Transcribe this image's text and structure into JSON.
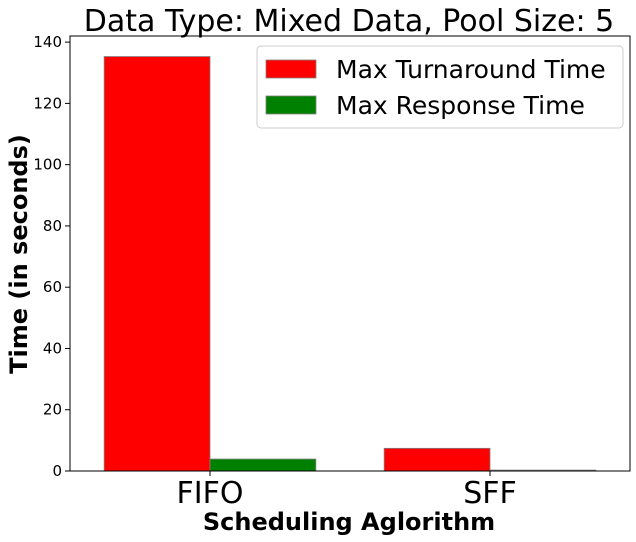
{
  "chart_data": {
    "type": "bar",
    "title": "Data Type: Mixed Data, Pool Size: 5",
    "xlabel": "Scheduling Aglorithm",
    "ylabel": "Time (in seconds)",
    "categories": [
      "FIFO",
      "SFF"
    ],
    "series": [
      {
        "name": "Max Turnaround Time",
        "color": "#ff0000",
        "values": [
          135.3,
          7.4
        ]
      },
      {
        "name": "Max Response Time",
        "color": "#008000",
        "values": [
          3.9,
          0.3
        ]
      }
    ],
    "ylim": [
      0,
      142
    ],
    "yticks": [
      0,
      20,
      40,
      60,
      80,
      100,
      120,
      140
    ],
    "grid": false,
    "legend": "top-right"
  }
}
